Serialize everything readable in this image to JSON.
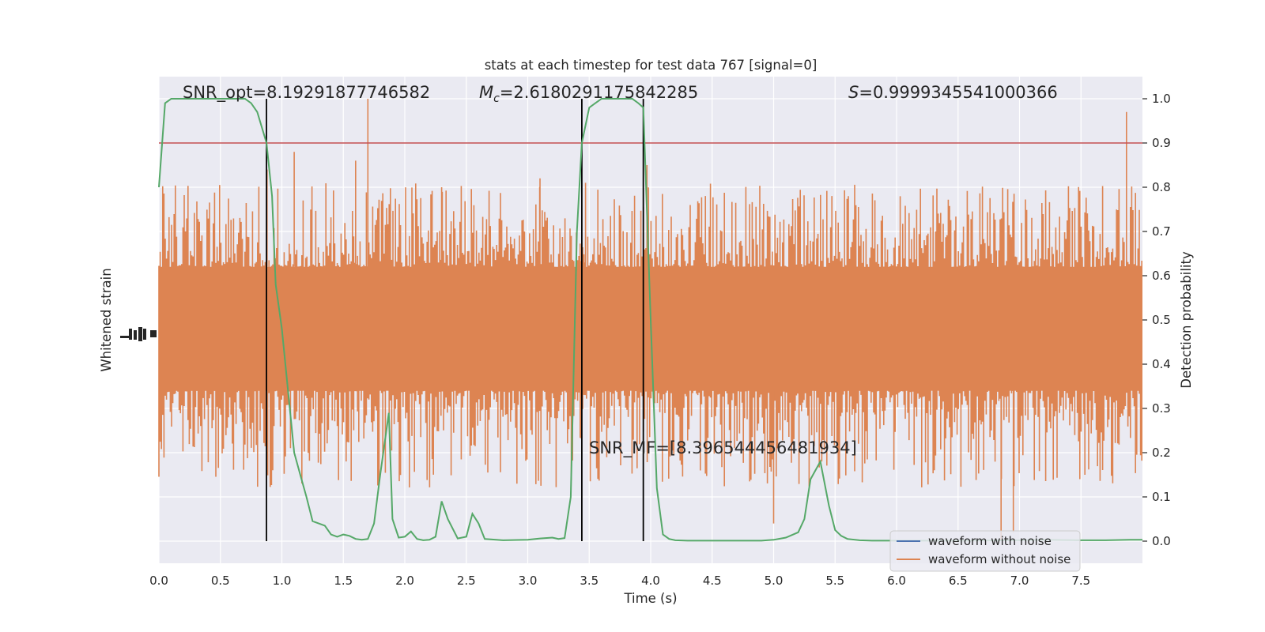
{
  "chart_data": {
    "type": "line",
    "title": "stats at each timestep for test data 767 [signal=0]",
    "xlabel": "Time (s)",
    "ylabel_left": "Whitened strain",
    "ylabel_right": "Detection probability",
    "xlim": [
      0.0,
      8.0
    ],
    "ylim_right": [
      -0.05,
      1.05
    ],
    "x_ticks": [
      "0.0",
      "0.5",
      "1.0",
      "1.5",
      "2.0",
      "2.5",
      "3.0",
      "3.5",
      "4.0",
      "4.5",
      "5.0",
      "5.5",
      "6.0",
      "6.5",
      "7.0",
      "7.5"
    ],
    "x_tick_values": [
      0.0,
      0.5,
      1.0,
      1.5,
      2.0,
      2.5,
      3.0,
      3.5,
      4.0,
      4.5,
      5.0,
      5.5,
      6.0,
      6.5,
      7.0,
      7.5
    ],
    "y_right_ticks": [
      "0.0",
      "0.1",
      "0.2",
      "0.3",
      "0.4",
      "0.5",
      "0.6",
      "0.7",
      "0.8",
      "0.9",
      "1.0"
    ],
    "y_right_tick_values": [
      0.0,
      0.1,
      0.2,
      0.3,
      0.4,
      0.5,
      0.6,
      0.7,
      0.8,
      0.9,
      1.0
    ],
    "threshold": 0.9,
    "threshold_color": "#c44e52",
    "vertical_lines": [
      0.875,
      3.44,
      3.94
    ],
    "vertical_line_color": "#000000",
    "annotations": {
      "snr_opt": "SNR_opt=8.19291877746582",
      "mc_symbol": "M",
      "mc_sub": "c",
      "mc_value": "=2.6180291175842285",
      "s_symbol": "S",
      "s_value": "=0.9999345541000366",
      "snr_mf": "SNR_MF=[8.396544456481934]"
    },
    "strain_band": {
      "name": "waveform without noise",
      "color": "#dd8452",
      "typical_low": 0.34,
      "typical_high": 0.62,
      "spike_high": 0.81,
      "spike_low": 0.12,
      "sparse_x": [
        0.88,
        1.1,
        1.6,
        1.7,
        2.3,
        3.1,
        3.47,
        3.97,
        5.0,
        6.85,
        6.95,
        7.87
      ],
      "sparse_y": [
        0.84,
        0.88,
        0.86,
        1.0,
        0.8,
        0.82,
        0.81,
        0.85,
        0.04,
        0.0,
        0.02,
        0.97
      ]
    },
    "series": [
      {
        "name": "waveform with noise",
        "color": "#4c72b0",
        "x": [],
        "y": []
      },
      {
        "name": "waveform without noise",
        "color": "#dd8452",
        "x": [],
        "y": []
      },
      {
        "name": "detection probability",
        "color": "#55a868",
        "x": [
          0.0,
          0.05,
          0.1,
          0.2,
          0.3,
          0.4,
          0.5,
          0.6,
          0.7,
          0.75,
          0.8,
          0.875,
          0.92,
          0.95,
          1.0,
          1.05,
          1.1,
          1.15,
          1.2,
          1.25,
          1.3,
          1.35,
          1.4,
          1.45,
          1.5,
          1.55,
          1.6,
          1.65,
          1.7,
          1.75,
          1.8,
          1.87,
          1.9,
          1.95,
          2.0,
          2.05,
          2.1,
          2.15,
          2.2,
          2.25,
          2.3,
          2.35,
          2.43,
          2.5,
          2.55,
          2.6,
          2.65,
          2.7,
          2.8,
          3.0,
          3.1,
          3.2,
          3.25,
          3.3,
          3.35,
          3.4,
          3.44,
          3.5,
          3.55,
          3.6,
          3.7,
          3.8,
          3.85,
          3.9,
          3.94,
          4.0,
          4.05,
          4.1,
          4.15,
          4.2,
          4.3,
          4.5,
          4.7,
          4.9,
          5.0,
          5.1,
          5.2,
          5.25,
          5.3,
          5.38,
          5.45,
          5.5,
          5.55,
          5.6,
          5.7,
          5.8,
          6.0,
          6.5,
          7.0,
          7.2,
          7.5,
          7.7,
          7.9,
          8.0
        ],
        "y": [
          0.8,
          0.99,
          1.0,
          1.0,
          1.0,
          1.0,
          1.0,
          1.0,
          1.0,
          0.99,
          0.97,
          0.9,
          0.78,
          0.58,
          0.48,
          0.34,
          0.2,
          0.15,
          0.1,
          0.045,
          0.04,
          0.035,
          0.015,
          0.01,
          0.015,
          0.012,
          0.005,
          0.003,
          0.005,
          0.04,
          0.15,
          0.29,
          0.05,
          0.008,
          0.01,
          0.022,
          0.005,
          0.002,
          0.003,
          0.01,
          0.09,
          0.05,
          0.006,
          0.01,
          0.062,
          0.04,
          0.005,
          0.004,
          0.002,
          0.003,
          0.006,
          0.008,
          0.005,
          0.007,
          0.1,
          0.7,
          0.9,
          0.98,
          0.99,
          1.0,
          1.0,
          1.0,
          1.0,
          0.99,
          0.98,
          0.5,
          0.12,
          0.015,
          0.005,
          0.002,
          0.001,
          0.001,
          0.001,
          0.001,
          0.003,
          0.008,
          0.02,
          0.05,
          0.14,
          0.18,
          0.08,
          0.025,
          0.012,
          0.005,
          0.002,
          0.001,
          0.001,
          0.001,
          0.002,
          0.003,
          0.002,
          0.002,
          0.003,
          0.003
        ]
      }
    ],
    "legend_position": "lower-right",
    "grid": true
  }
}
